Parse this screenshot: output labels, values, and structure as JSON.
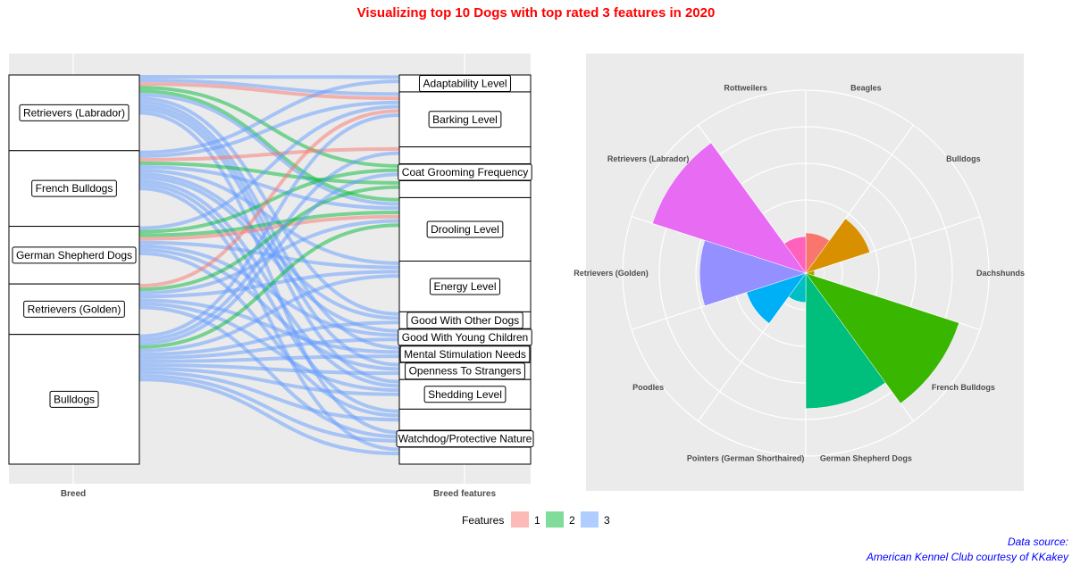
{
  "title": "Visualizing top 10 Dogs with top rated 3 features in 2020",
  "legend": {
    "title": "Features",
    "items": [
      {
        "label": "1",
        "color": "#F8766D"
      },
      {
        "label": "2",
        "color": "#00BA38"
      },
      {
        "label": "3",
        "color": "#619CFF"
      }
    ]
  },
  "source": {
    "line1": "Data source:",
    "line2": "American Kennel Club courtesy of KKakey"
  },
  "chart_data": [
    {
      "type": "alluvial",
      "xlabels": [
        "Breed",
        "Breed features"
      ],
      "breeds": [
        {
          "name": "Retrievers (Labrador)",
          "flows": 21
        },
        {
          "name": "French Bulldogs",
          "flows": 21
        },
        {
          "name": "German Shepherd Dogs",
          "flows": 16
        },
        {
          "name": "Retrievers (Golden)",
          "flows": 14
        },
        {
          "name": "Bulldogs",
          "flows": 36
        }
      ],
      "features": [
        {
          "name": "Adaptability Level",
          "flows": 4
        },
        {
          "name": "Barking Level",
          "flows": 13
        },
        {
          "name": "",
          "flows": 4
        },
        {
          "name": "Coat Grooming Frequency",
          "flows": 4
        },
        {
          "name": "",
          "flows": 4
        },
        {
          "name": "Drooling Level",
          "flows": 15
        },
        {
          "name": "Energy Level",
          "flows": 12
        },
        {
          "name": "Good With Other Dogs",
          "flows": 4
        },
        {
          "name": "Good With Young Children",
          "flows": 4
        },
        {
          "name": "Mental Stimulation Needs",
          "flows": 4
        },
        {
          "name": "Openness To Strangers",
          "flows": 4
        },
        {
          "name": "Shedding Level",
          "flows": 7
        },
        {
          "name": "",
          "flows": 5
        },
        {
          "name": "Watchdog/Protective Nature",
          "flows": 4
        },
        {
          "name": "",
          "flows": 4
        }
      ],
      "flows": [
        [
          0,
          0,
          3
        ],
        [
          0,
          1,
          3
        ],
        [
          0,
          1,
          1
        ],
        [
          0,
          3,
          2
        ],
        [
          0,
          5,
          2
        ],
        [
          0,
          5,
          3
        ],
        [
          0,
          7,
          3
        ],
        [
          0,
          9,
          3
        ],
        [
          0,
          10,
          3
        ],
        [
          0,
          11,
          3
        ],
        [
          0,
          13,
          3
        ],
        [
          1,
          0,
          3
        ],
        [
          1,
          1,
          3
        ],
        [
          1,
          2,
          1
        ],
        [
          1,
          4,
          2
        ],
        [
          1,
          5,
          3
        ],
        [
          1,
          6,
          3
        ],
        [
          1,
          7,
          3
        ],
        [
          1,
          8,
          3
        ],
        [
          1,
          11,
          3
        ],
        [
          1,
          12,
          3
        ],
        [
          1,
          14,
          3
        ],
        [
          2,
          1,
          3
        ],
        [
          2,
          3,
          2
        ],
        [
          2,
          5,
          2
        ],
        [
          2,
          5,
          1
        ],
        [
          2,
          6,
          3
        ],
        [
          2,
          8,
          3
        ],
        [
          2,
          10,
          3
        ],
        [
          2,
          12,
          3
        ],
        [
          3,
          1,
          1
        ],
        [
          3,
          4,
          2
        ],
        [
          3,
          5,
          3
        ],
        [
          3,
          6,
          3
        ],
        [
          3,
          9,
          3
        ],
        [
          3,
          11,
          3
        ],
        [
          3,
          13,
          3
        ],
        [
          4,
          1,
          3
        ],
        [
          4,
          2,
          3
        ],
        [
          4,
          3,
          3
        ],
        [
          4,
          5,
          2
        ],
        [
          4,
          6,
          3
        ],
        [
          4,
          7,
          3
        ],
        [
          4,
          8,
          3
        ],
        [
          4,
          9,
          3
        ],
        [
          4,
          10,
          3
        ],
        [
          4,
          11,
          3
        ],
        [
          4,
          12,
          3
        ],
        [
          4,
          13,
          3
        ],
        [
          4,
          14,
          3
        ]
      ]
    },
    {
      "type": "polar-bar",
      "categories": [
        "Beagles",
        "Bulldogs",
        "Dachshunds",
        "French Bulldogs",
        "German Shepherd Dogs",
        "Pointers (German Shorthaired)",
        "Poodles",
        "Retrievers (Golden)",
        "Retrievers (Labrador)",
        "Rottweilers"
      ],
      "values": [
        0.55,
        0.92,
        0.12,
        2.2,
        1.85,
        0.4,
        0.85,
        1.45,
        2.2,
        0.5
      ],
      "colors": [
        "#F8766D",
        "#D89000",
        "#A3A500",
        "#39B600",
        "#00BF7D",
        "#00BFC4",
        "#00B0F6",
        "#9590FF",
        "#E76BF3",
        "#FF62BC"
      ],
      "rmax": 2.5,
      "rings": [
        0.5,
        1.0,
        1.5,
        2.0,
        2.5
      ]
    }
  ]
}
